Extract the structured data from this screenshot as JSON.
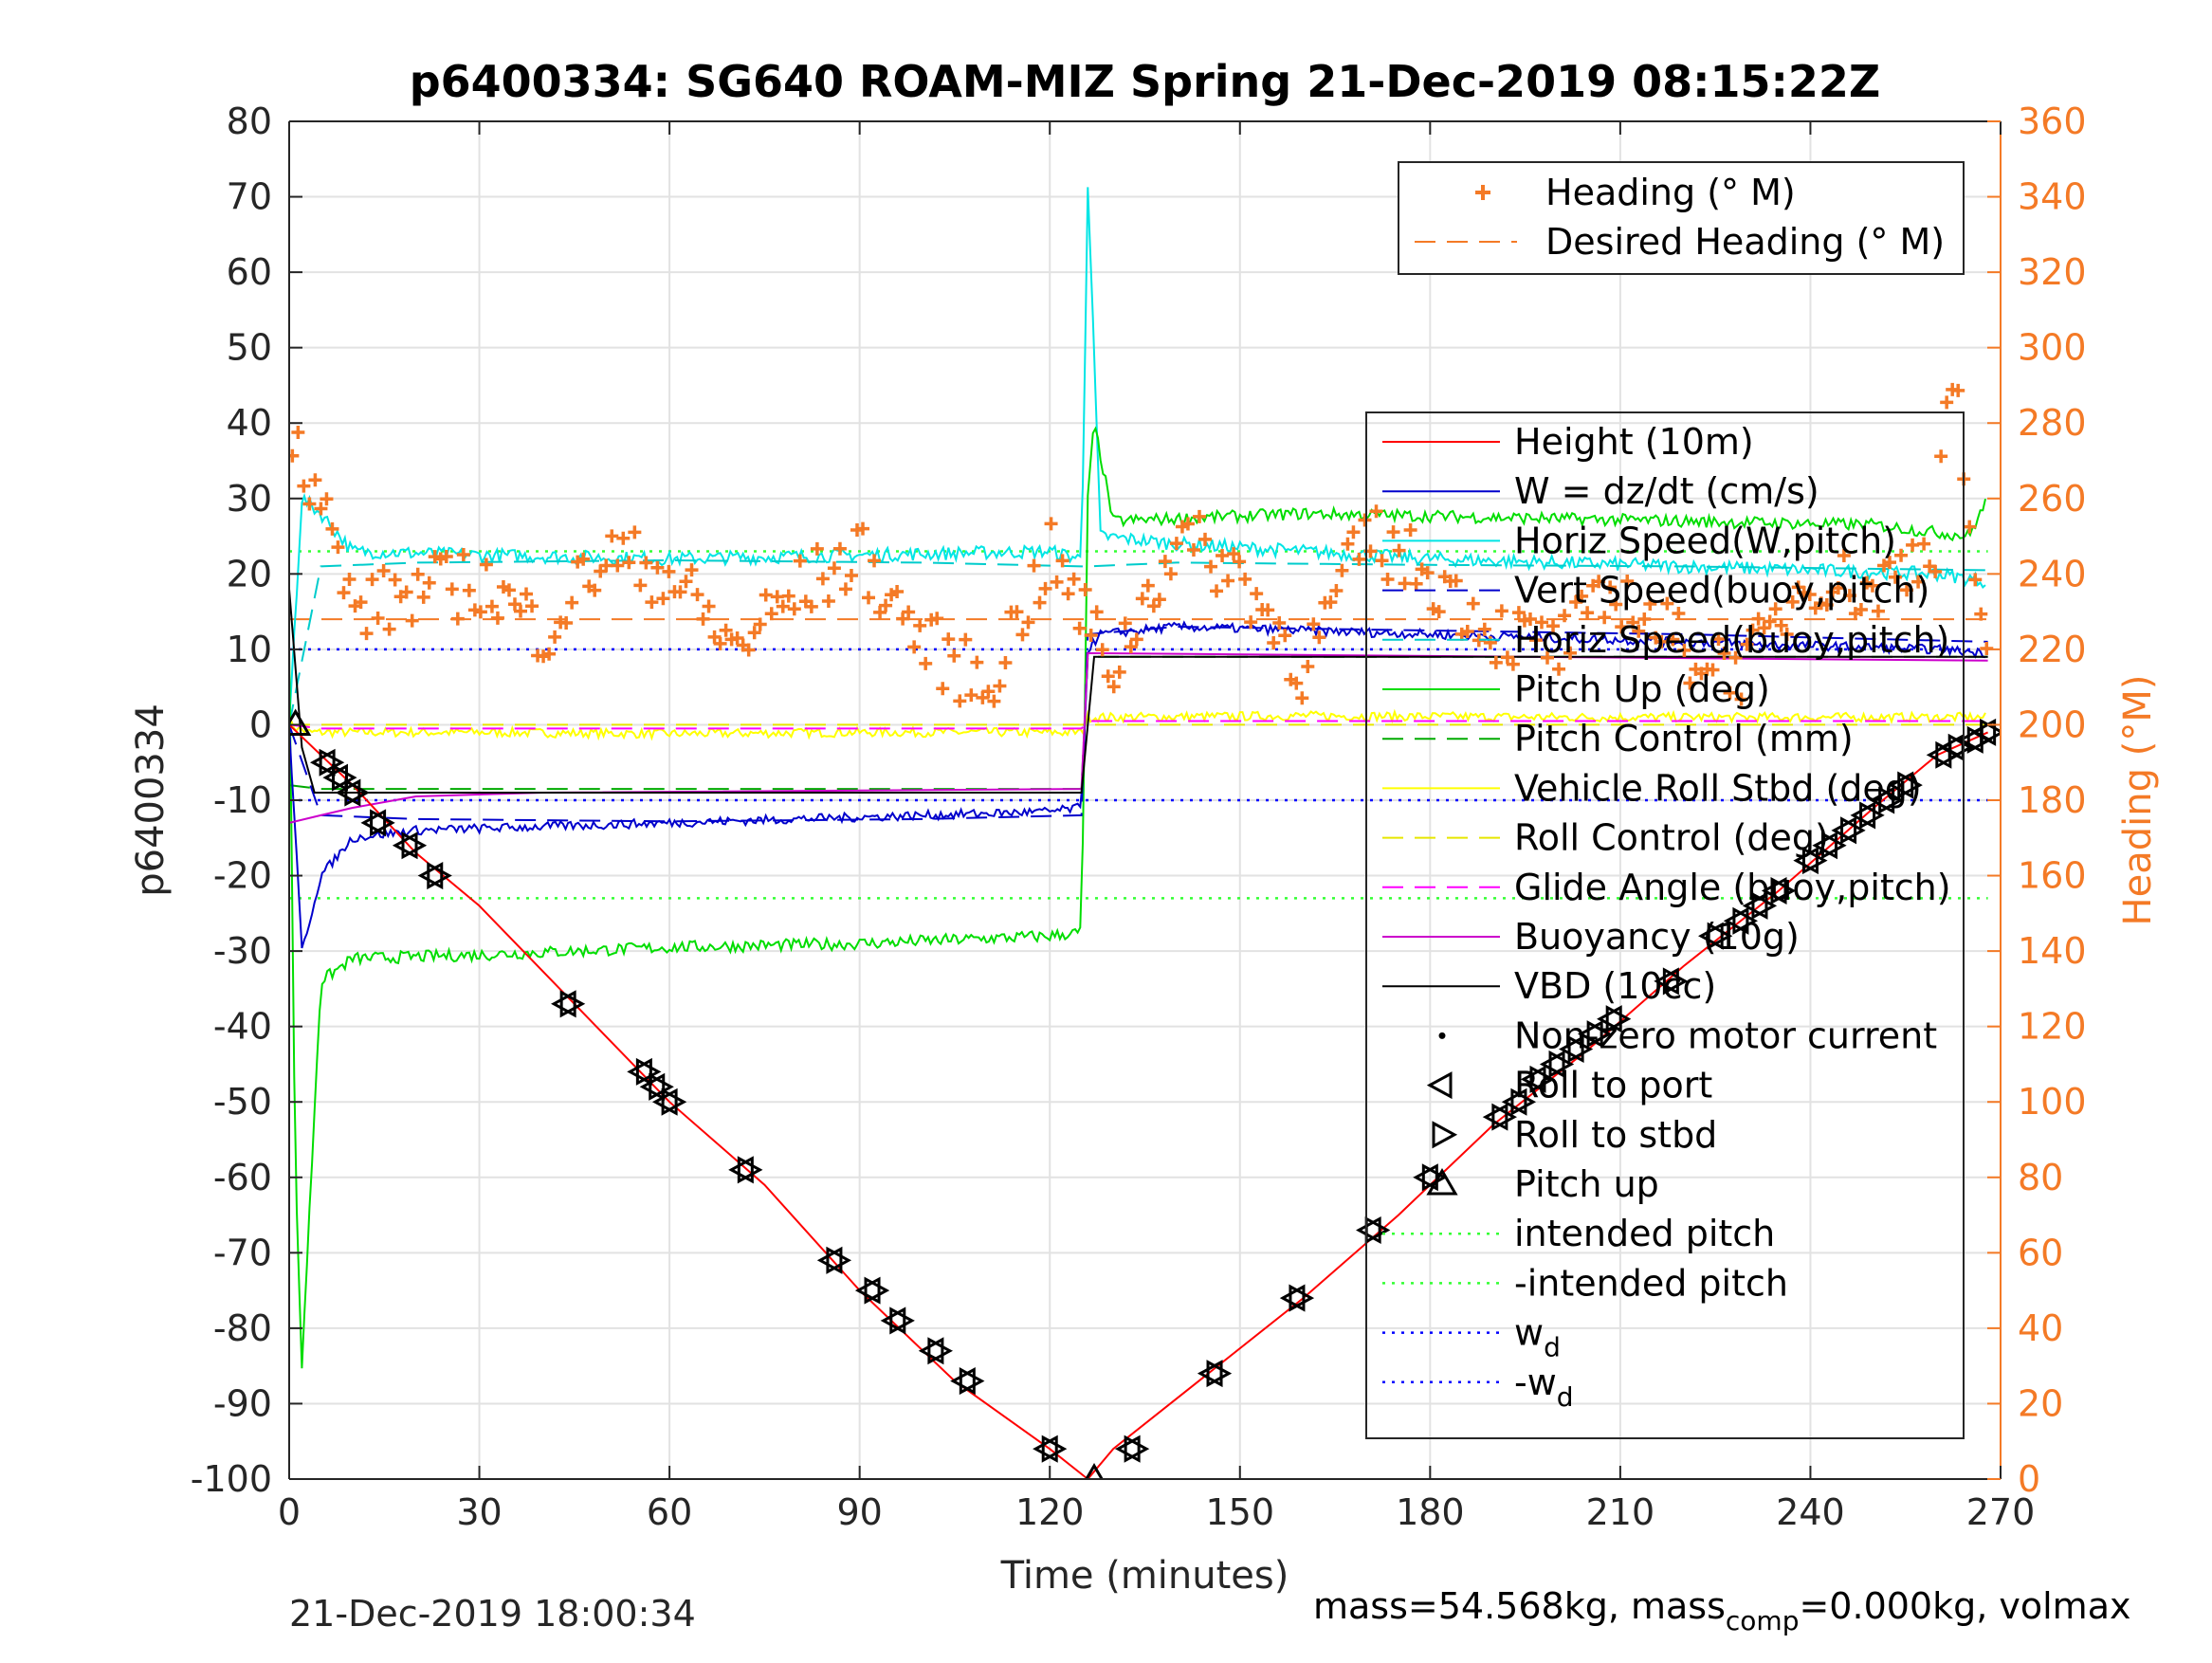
{
  "chart_data": {
    "type": "line",
    "title": "p6400334: SG640 ROAM-MIZ Spring 21-Dec-2019 08:15:22Z",
    "xlabel": "Time (minutes)",
    "ylabel": "p6400334",
    "y2label": "Heading (°M)",
    "xlim": [
      0,
      270
    ],
    "ylim": [
      -100,
      80
    ],
    "y2lim": [
      0,
      360
    ],
    "x_ticks": [
      0,
      30,
      60,
      90,
      120,
      150,
      180,
      210,
      240,
      270
    ],
    "y_ticks": [
      -100,
      -90,
      -80,
      -70,
      -60,
      -50,
      -40,
      -30,
      -20,
      -10,
      0,
      10,
      20,
      30,
      40,
      50,
      60,
      70,
      80
    ],
    "y2_ticks": [
      0,
      20,
      40,
      60,
      80,
      100,
      120,
      140,
      160,
      180,
      200,
      220,
      240,
      260,
      280,
      300,
      320,
      340,
      360
    ],
    "grid": true,
    "colors": {
      "height": "#ff0000",
      "w": "#0000cc",
      "horiz_w": "#00e5e5",
      "vert_buoy": "#0000cc",
      "horiz_buoy": "#00cccc",
      "pitch": "#00dd00",
      "pitch_ctl": "#00aa00",
      "roll": "#ffff00",
      "roll_ctl": "#e6e600",
      "glide": "#ff00ff",
      "buoyancy": "#cc00cc",
      "vbd": "#000000",
      "heading": "#f47a26",
      "intended": "#33ff33",
      "wd": "#0000ff"
    },
    "legend_top": {
      "position": "top-right",
      "entries": [
        "Heading (° M)",
        "Desired Heading (° M)"
      ]
    },
    "legend_main": {
      "position": "right",
      "entries": [
        "Height (10m)",
        "W = dz/dt (cm/s)",
        "Horiz Speed(W,pitch)",
        "Vert Speed(buoy,pitch)",
        "Horiz Speed(buoy,pitch)",
        "Pitch Up (deg)",
        "Pitch Control (mm)",
        "Vehicle Roll Stbd (deg)",
        "Roll Control (deg)",
        "Glide Angle (buoy,pitch)",
        "Buoyancy (10g)",
        "VBD (10cc)",
        "Non-zero motor current",
        "Roll to port",
        "Roll to stbd",
        "Pitch up",
        "intended pitch",
        "-intended pitch",
        "w_d",
        "-w_d"
      ]
    },
    "series": [
      {
        "name": "Height (10m)",
        "x": [
          0,
          5,
          10,
          20,
          30,
          45,
          60,
          75,
          90,
          105,
          120,
          126,
          130,
          145,
          160,
          175,
          190,
          205,
          220,
          235,
          250,
          260,
          268
        ],
        "y": [
          0,
          -4,
          -8,
          -17,
          -24,
          -37,
          -50,
          -61,
          -75,
          -87,
          -96,
          -100,
          -96,
          -86,
          -76,
          -65,
          -53,
          -43,
          -32,
          -22,
          -11,
          -4,
          -1
        ]
      },
      {
        "name": "W = dz/dt (cm/s)",
        "x": [
          0,
          2,
          5,
          10,
          20,
          40,
          60,
          80,
          100,
          120,
          125,
          126,
          128,
          140,
          160,
          180,
          200,
          220,
          240,
          260,
          268
        ],
        "y": [
          0,
          -30,
          -20,
          -15,
          -14,
          -13.5,
          -13,
          -12.5,
          -12,
          -11.5,
          -11,
          10,
          12,
          13,
          12.5,
          12,
          11.5,
          11,
          10.5,
          10,
          9.5
        ]
      },
      {
        "name": "Horiz Speed(W,pitch)",
        "x": [
          0,
          2,
          5,
          10,
          30,
          60,
          90,
          120,
          125,
          126,
          128,
          140,
          160,
          180,
          200,
          220,
          240,
          260,
          268
        ],
        "y": [
          0,
          30,
          28,
          23,
          22.5,
          22,
          22.5,
          23,
          22,
          72,
          25,
          24,
          23,
          22,
          21.5,
          21,
          20.5,
          20,
          19
        ]
      },
      {
        "name": "Vert Speed(buoy,pitch)",
        "x": [
          0,
          5,
          20,
          60,
          100,
          125,
          126,
          140,
          180,
          220,
          268
        ],
        "y": [
          0,
          -12,
          -12.5,
          -12.8,
          -12.5,
          -12,
          12,
          13,
          12.5,
          12,
          11
        ]
      },
      {
        "name": "Horiz Speed(buoy,pitch)",
        "x": [
          0,
          5,
          20,
          60,
          100,
          125,
          126,
          140,
          180,
          220,
          268
        ],
        "y": [
          0,
          21,
          21.5,
          21.8,
          21.5,
          21,
          21,
          21.5,
          21.2,
          21,
          20.5
        ]
      },
      {
        "name": "Pitch Up (deg)",
        "x": [
          0,
          1,
          2,
          5,
          10,
          30,
          60,
          90,
          120,
          125,
          126,
          127,
          130,
          160,
          190,
          220,
          250,
          265,
          268
        ],
        "y": [
          10,
          -60,
          -85,
          -34,
          -31,
          -30.5,
          -29.5,
          -29,
          -28,
          -27.5,
          30,
          40,
          27,
          28,
          27.5,
          27,
          26.5,
          25,
          30
        ]
      },
      {
        "name": "Pitch Control (mm)",
        "x": [
          0,
          5,
          125,
          126,
          268
        ],
        "y": [
          -8,
          -8.5,
          -8.5,
          9,
          9
        ]
      },
      {
        "name": "Vehicle Roll Stbd (deg)",
        "x": [
          0,
          3,
          10,
          30,
          60,
          90,
          120,
          125,
          126,
          130,
          160,
          200,
          240,
          268
        ],
        "y": [
          0,
          -1,
          -1,
          -1,
          -1.2,
          -1,
          -1,
          -1,
          1,
          1,
          1.2,
          1,
          1,
          1
        ]
      },
      {
        "name": "Roll Control (deg)",
        "x": [
          0,
          268
        ],
        "y": [
          0,
          0
        ]
      },
      {
        "name": "Glide Angle (buoy,pitch)",
        "x": [
          0,
          5,
          125,
          126,
          268
        ],
        "y": [
          0,
          -0.5,
          -0.5,
          0.5,
          0.5
        ]
      },
      {
        "name": "Buoyancy (10g)",
        "x": [
          0,
          5,
          10,
          20,
          40,
          125,
          126,
          268
        ],
        "y": [
          -13,
          -12,
          -11,
          -9.5,
          -9,
          -8.5,
          9.5,
          8.5
        ]
      },
      {
        "name": "VBD (10cc)",
        "x": [
          0,
          2,
          4,
          125,
          127,
          268
        ],
        "y": [
          18,
          -3,
          -9,
          -9,
          9,
          9
        ]
      },
      {
        "name": "Heading (° M)",
        "x": [
          0,
          5,
          10,
          20,
          30,
          40,
          50,
          60,
          70,
          80,
          90,
          100,
          110,
          120,
          125,
          130,
          140,
          150,
          160,
          170,
          180,
          190,
          200,
          210,
          220,
          230,
          240,
          250,
          260,
          262,
          268
        ],
        "y": [
          280,
          260,
          230,
          235,
          238,
          225,
          245,
          240,
          220,
          235,
          245,
          222,
          210,
          245,
          230,
          215,
          250,
          240,
          215,
          250,
          240,
          225,
          220,
          235,
          220,
          215,
          240,
          235,
          250,
          300,
          210
        ]
      },
      {
        "name": "Desired Heading (° M)",
        "x": [
          0,
          268
        ],
        "y": [
          228,
          228
        ]
      },
      {
        "name": "intended pitch",
        "x": [
          0,
          268
        ],
        "y": [
          23,
          23
        ]
      },
      {
        "name": "-intended pitch",
        "x": [
          0,
          268
        ],
        "y": [
          -23,
          -23
        ]
      },
      {
        "name": "w_d",
        "x": [
          0,
          268
        ],
        "y": [
          10,
          10
        ]
      },
      {
        "name": "-w_d",
        "x": [
          0,
          268
        ],
        "y": [
          -10,
          -10
        ]
      }
    ],
    "markers": {
      "pitch_up": {
        "x": [
          1,
          127
        ],
        "y": [
          0,
          -100
        ]
      },
      "roll_to_port": {
        "x": [
          6,
          8,
          10,
          14,
          19,
          23,
          44,
          56,
          58,
          60,
          72,
          86,
          92,
          96,
          102,
          107,
          120,
          133,
          146,
          159,
          171,
          180,
          191,
          194,
          197,
          200,
          203,
          206,
          209,
          218,
          225,
          229,
          232,
          235,
          240,
          243,
          246,
          249,
          252,
          255,
          261,
          263,
          266,
          268
        ],
        "y": [
          -5,
          -7,
          -9,
          -13,
          -16,
          -20,
          -37,
          -46,
          -48,
          -50,
          -59,
          -71,
          -75,
          -79,
          -83,
          -87,
          -96,
          -96,
          -86,
          -76,
          -67,
          -60,
          -52,
          -50,
          -47,
          -45,
          -43,
          -41,
          -39,
          -34,
          -28,
          -26,
          -24,
          -22,
          -18,
          -16,
          -14,
          -12,
          -10,
          -8,
          -4,
          -3,
          -2,
          -1
        ]
      },
      "roll_to_stbd": {
        "x": [
          6,
          8,
          10,
          14,
          19,
          23,
          44,
          56,
          58,
          60,
          72,
          86,
          92,
          96,
          102,
          107,
          120,
          133,
          146,
          159,
          171,
          180,
          191,
          194,
          197,
          200,
          203,
          206,
          209,
          218,
          225,
          229,
          232,
          235,
          240,
          243,
          246,
          249,
          252,
          255,
          261,
          263,
          266,
          268
        ],
        "y": [
          -5,
          -7,
          -9,
          -13,
          -16,
          -20,
          -37,
          -46,
          -48,
          -50,
          -59,
          -71,
          -75,
          -79,
          -83,
          -87,
          -96,
          -96,
          -86,
          -76,
          -67,
          -60,
          -52,
          -50,
          -47,
          -45,
          -43,
          -41,
          -39,
          -34,
          -28,
          -26,
          -24,
          -22,
          -18,
          -16,
          -14,
          -12,
          -10,
          -8,
          -4,
          -3,
          -2,
          -1
        ]
      }
    }
  },
  "footer": {
    "timestamp": "21-Dec-2019 18:00:34",
    "mass_prefix": "mass=54.568kg, mass",
    "mass_sub": "comp",
    "mass_suffix": "=0.000kg, volmax"
  }
}
